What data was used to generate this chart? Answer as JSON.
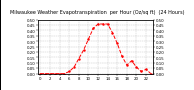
{
  "title": "Milwaukee Weather Evapotranspiration  per Hour (Oz/sq ft)  (24 Hours)",
  "hours": [
    0,
    1,
    2,
    3,
    4,
    5,
    6,
    7,
    8,
    9,
    10,
    11,
    12,
    13,
    14,
    15,
    16,
    17,
    18,
    19,
    20,
    21,
    22,
    23
  ],
  "values": [
    0.0,
    0.0,
    0.0,
    0.0,
    0.0,
    0.0,
    0.02,
    0.06,
    0.14,
    0.22,
    0.32,
    0.42,
    0.46,
    0.46,
    0.46,
    0.38,
    0.28,
    0.16,
    0.08,
    0.12,
    0.06,
    0.02,
    0.04,
    0.0
  ],
  "line_color": "#ff0000",
  "line_style": "--",
  "marker": ".",
  "marker_size": 1.5,
  "line_width": 0.7,
  "background_color": "#ffffff",
  "grid_color": "#aaaaaa",
  "ylim": [
    0,
    0.5
  ],
  "xlim": [
    -0.5,
    23.5
  ],
  "ytick_step": 0.05,
  "title_fontsize": 3.5,
  "tick_fontsize": 2.8,
  "title_color": "#000000",
  "xtick_every": 2
}
